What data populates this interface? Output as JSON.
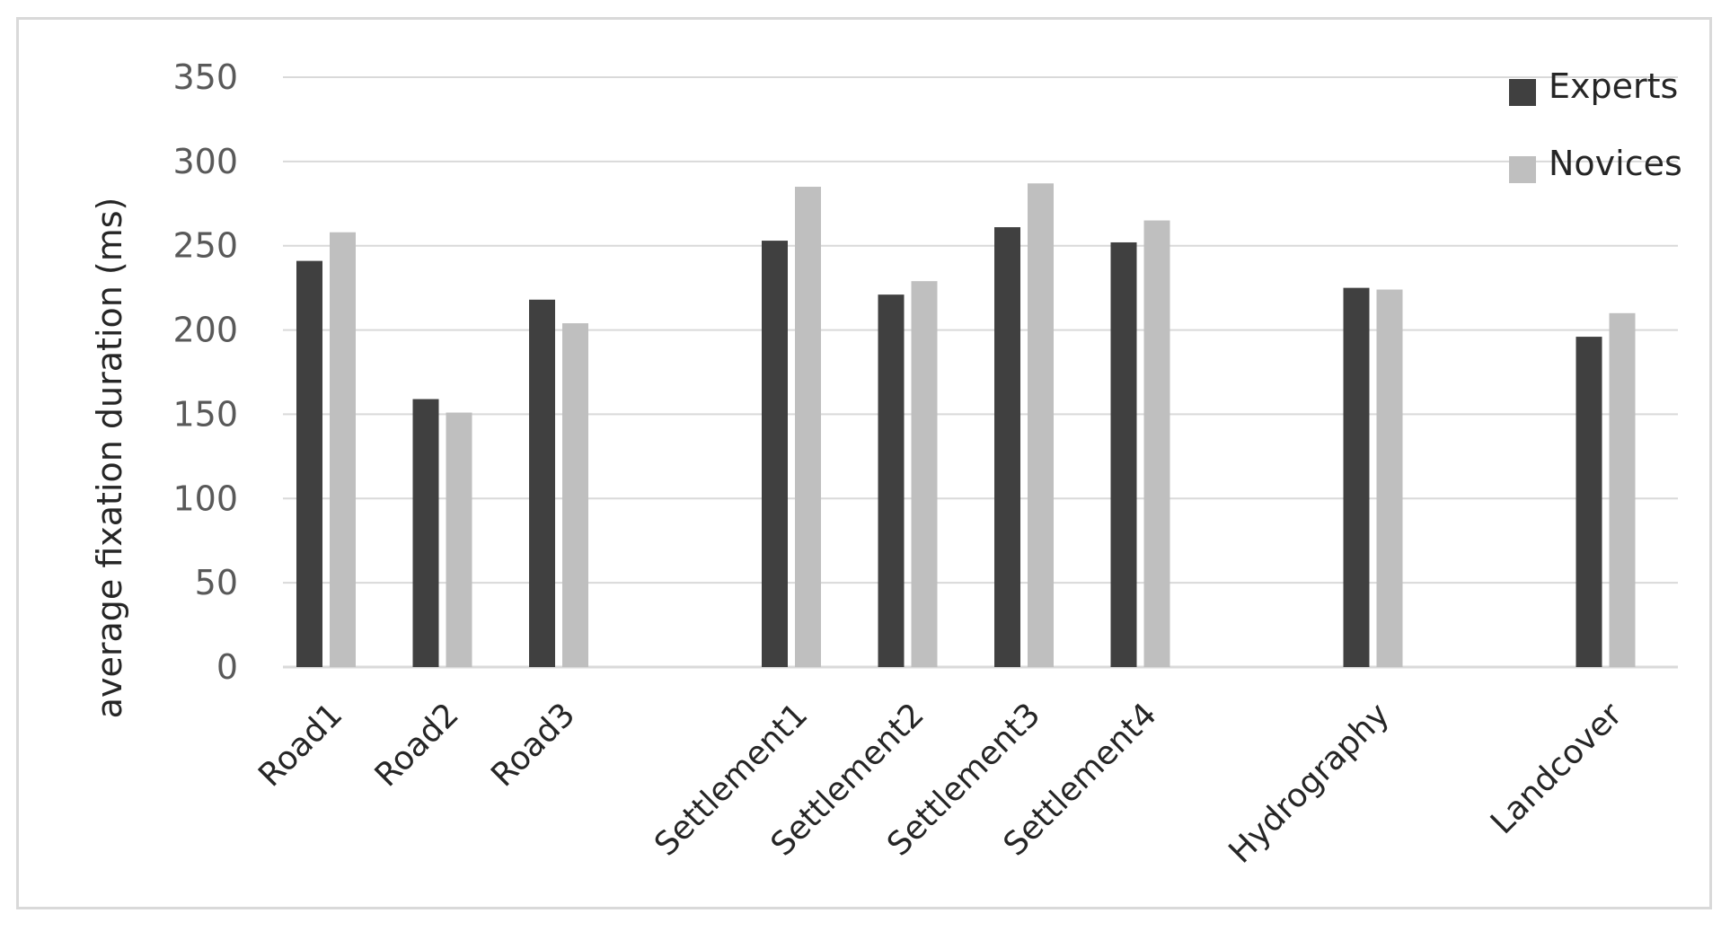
{
  "chart_data": {
    "type": "bar",
    "title": "",
    "xlabel": "",
    "ylabel": "average fixation duration (ms)",
    "ylim": [
      0,
      350
    ],
    "yticks": [
      "0",
      "50",
      "100",
      "150",
      "200",
      "250",
      "300",
      "350"
    ],
    "grid": true,
    "legend_position": "top-right",
    "categories": [
      "Road1",
      "Road2",
      "Road3",
      "Settlement1",
      "Settlement2",
      "Settlement3",
      "Settlement4",
      "Hydrography",
      "Landcover"
    ],
    "series": [
      {
        "name": "Experts",
        "color": "#404040",
        "values": [
          241,
          159,
          218,
          253,
          221,
          261,
          252,
          225,
          196
        ]
      },
      {
        "name": "Novices",
        "color": "#bfbfbf",
        "values": [
          258,
          151,
          204,
          285,
          229,
          287,
          265,
          224,
          210
        ]
      }
    ]
  }
}
